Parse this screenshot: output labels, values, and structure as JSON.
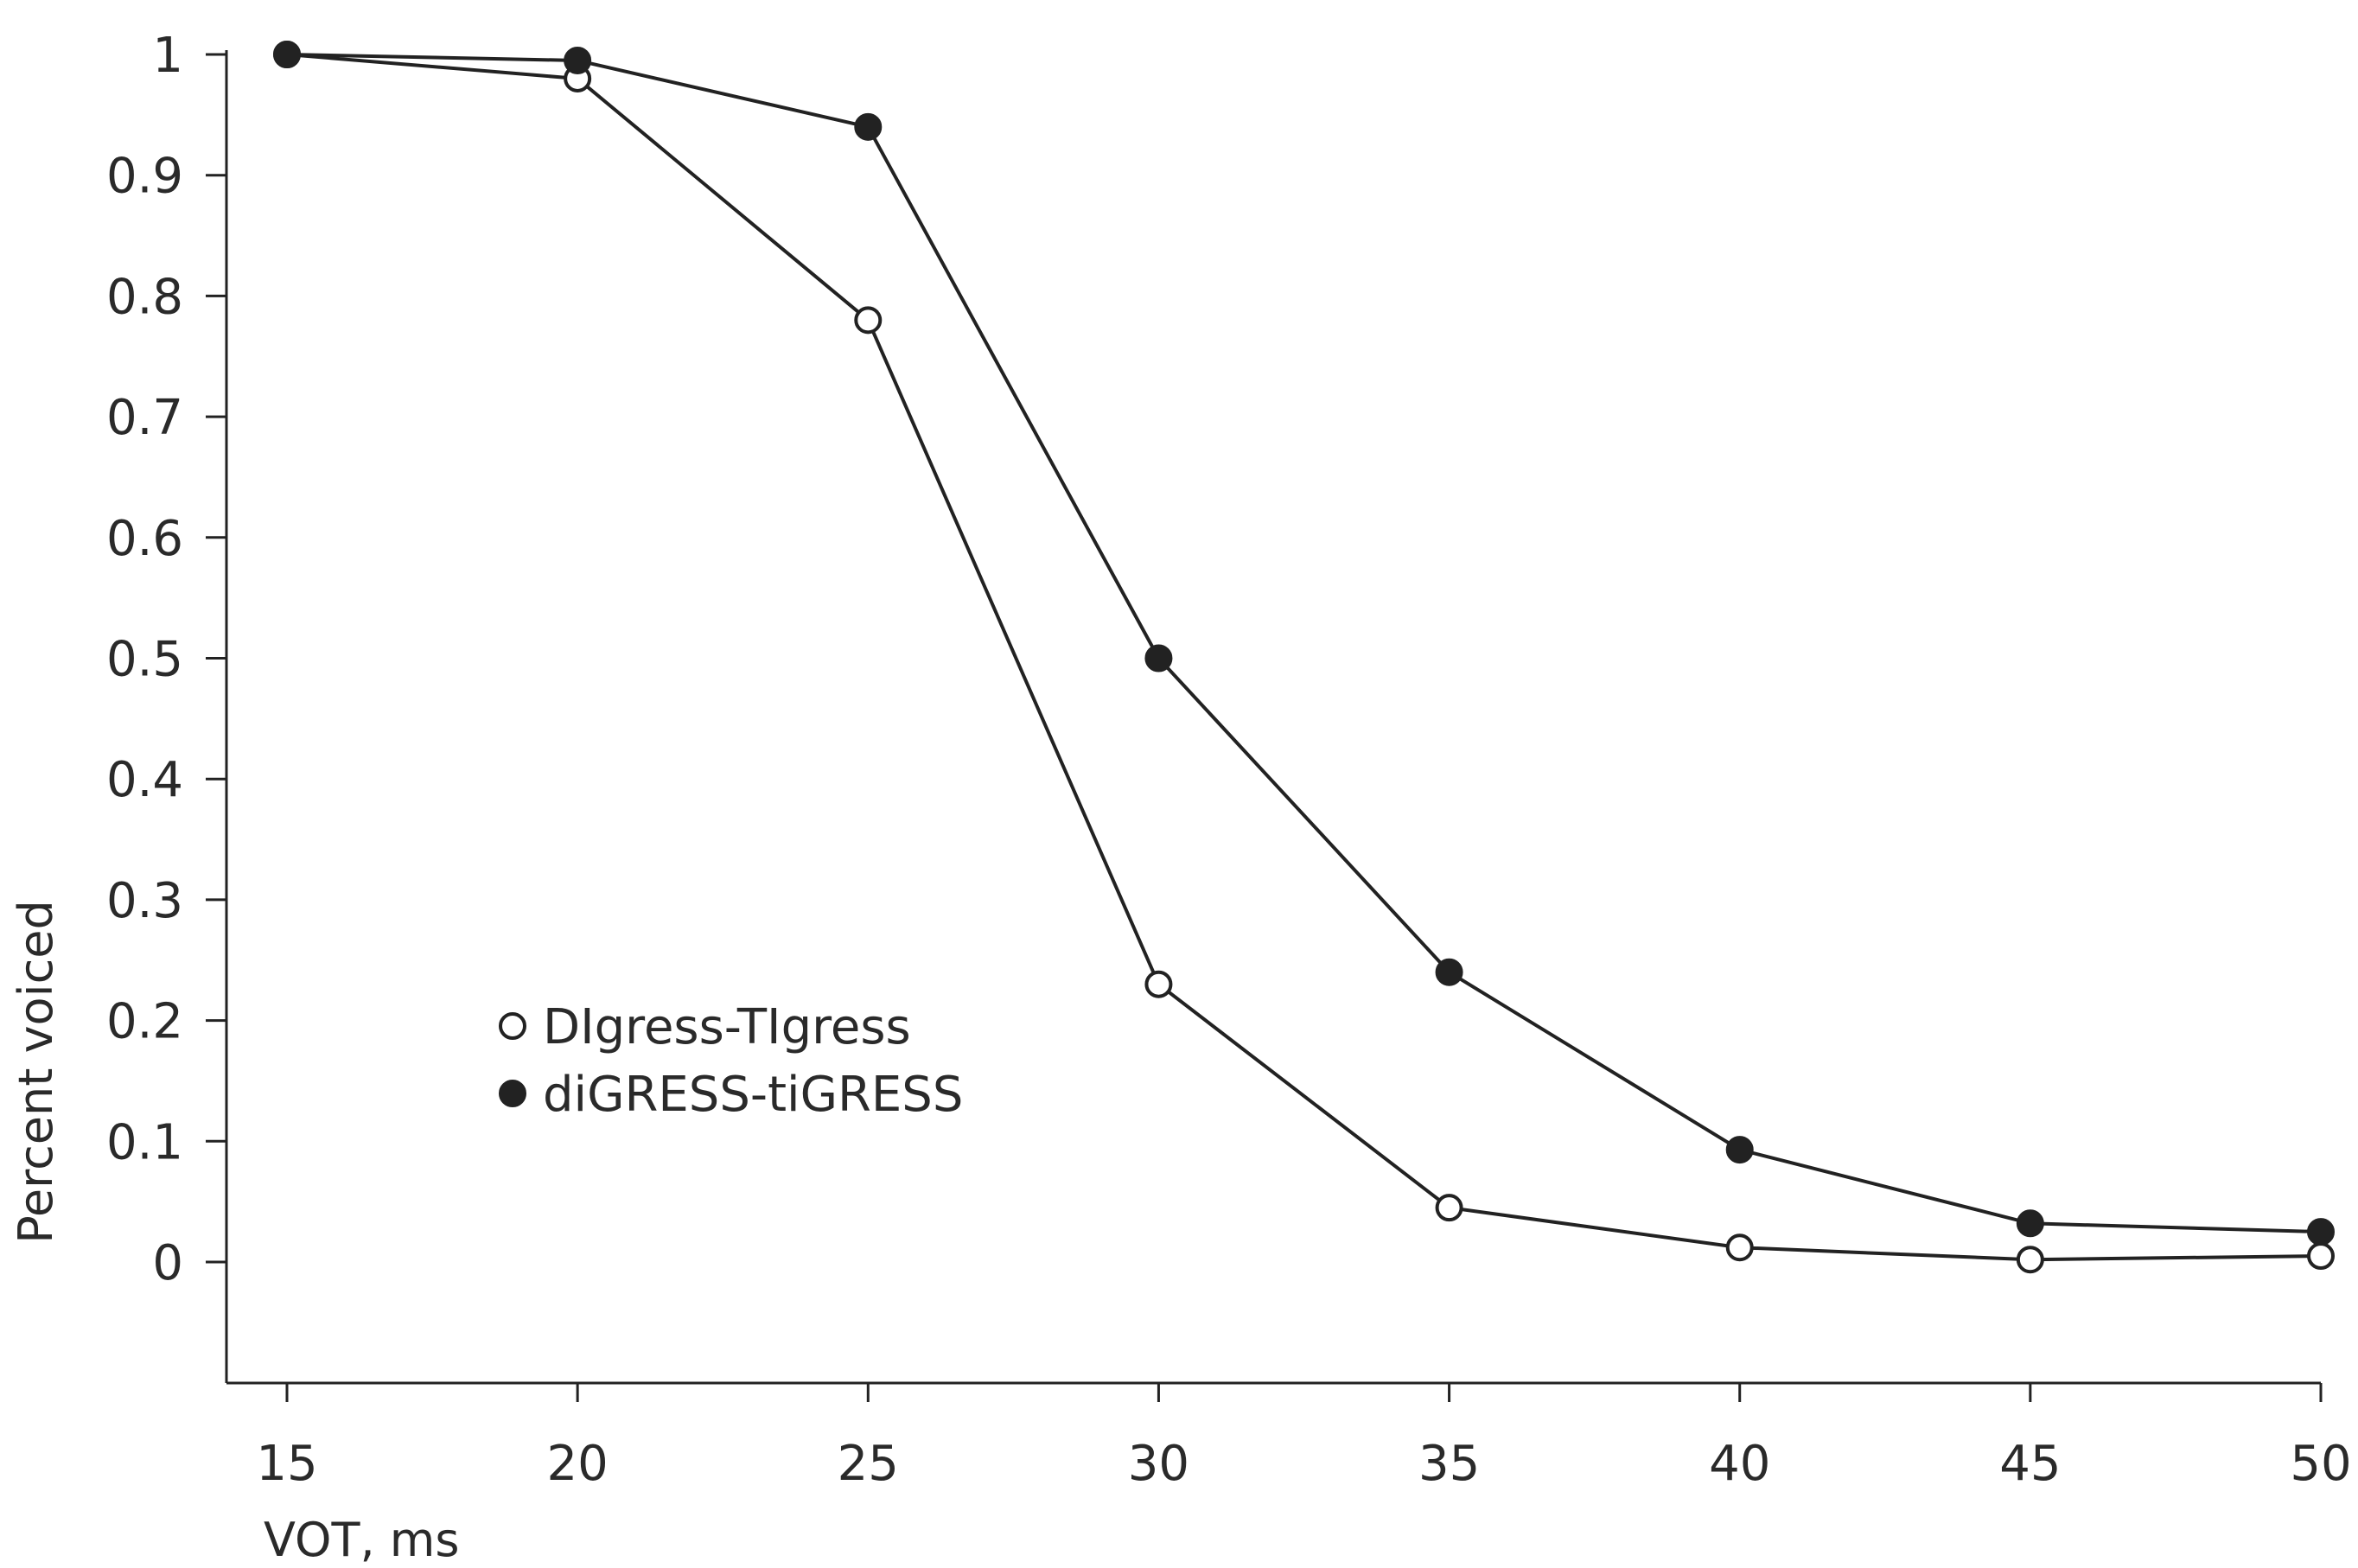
{
  "chart_data": {
    "type": "line",
    "xlabel": "VOT, ms",
    "ylabel": "Percent  voiced",
    "x": [
      15,
      20,
      25,
      30,
      35,
      40,
      45,
      50
    ],
    "xlim": [
      15,
      50
    ],
    "ylim": [
      -0.1,
      1
    ],
    "x_ticks": [
      "15",
      "20",
      "25",
      "30",
      "35",
      "40",
      "45",
      "50"
    ],
    "y_ticks": [
      "1",
      "0.9",
      "0.8",
      "0.7",
      "0.6",
      "0.5",
      "0.4",
      "0.3",
      "0.2",
      "0.1",
      "0"
    ],
    "y_tick_values": [
      1,
      0.9,
      0.8,
      0.7,
      0.6,
      0.5,
      0.4,
      0.3,
      0.2,
      0.1,
      0
    ],
    "grid": false,
    "legend_position": "center-left",
    "series": [
      {
        "name": "DIgress-TIgress",
        "marker": "open-circle",
        "color": "#222222",
        "values": [
          1.0,
          0.98,
          0.78,
          0.23,
          0.045,
          0.012,
          0.002,
          0.005
        ]
      },
      {
        "name": "diGRESS-tiGRESS",
        "marker": "filled-circle",
        "color": "#222222",
        "values": [
          1.0,
          0.995,
          0.94,
          0.5,
          0.24,
          0.093,
          0.032,
          0.025
        ]
      }
    ]
  }
}
